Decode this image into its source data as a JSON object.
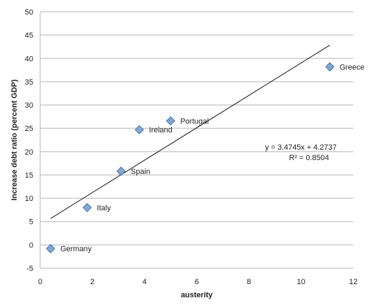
{
  "chart_data": {
    "type": "scatter",
    "xlabel": "austerity",
    "ylabel": "Increase debt ratio (percent GDP)",
    "xlim": [
      0,
      12
    ],
    "ylim": [
      -5,
      50
    ],
    "x_ticks": [
      0,
      2,
      4,
      6,
      8,
      10,
      12
    ],
    "y_ticks": [
      -5,
      0,
      5,
      10,
      15,
      20,
      25,
      30,
      35,
      40,
      45,
      50
    ],
    "grid": "horizontal",
    "points": [
      {
        "label": "Germany",
        "x": 0.4,
        "y": -0.8
      },
      {
        "label": "Italy",
        "x": 1.8,
        "y": 8.0
      },
      {
        "label": "Spain",
        "x": 3.1,
        "y": 15.8
      },
      {
        "label": "Ireland",
        "x": 3.8,
        "y": 24.7
      },
      {
        "label": "Portugal",
        "x": 5.0,
        "y": 26.6
      },
      {
        "label": "Greece",
        "x": 11.1,
        "y": 38.2
      }
    ],
    "trendline": {
      "slope": 3.4745,
      "intercept": 4.2737,
      "x_range": [
        0.4,
        11.1
      ],
      "equation": "y = 3.4745x + 4.2737",
      "r_squared": "R² = 0.8504"
    },
    "colors": {
      "marker_fill": "#7fa7d8",
      "marker_stroke": "#4a73ad",
      "grid": "#b5b5b5",
      "trendline": "#111111"
    }
  }
}
